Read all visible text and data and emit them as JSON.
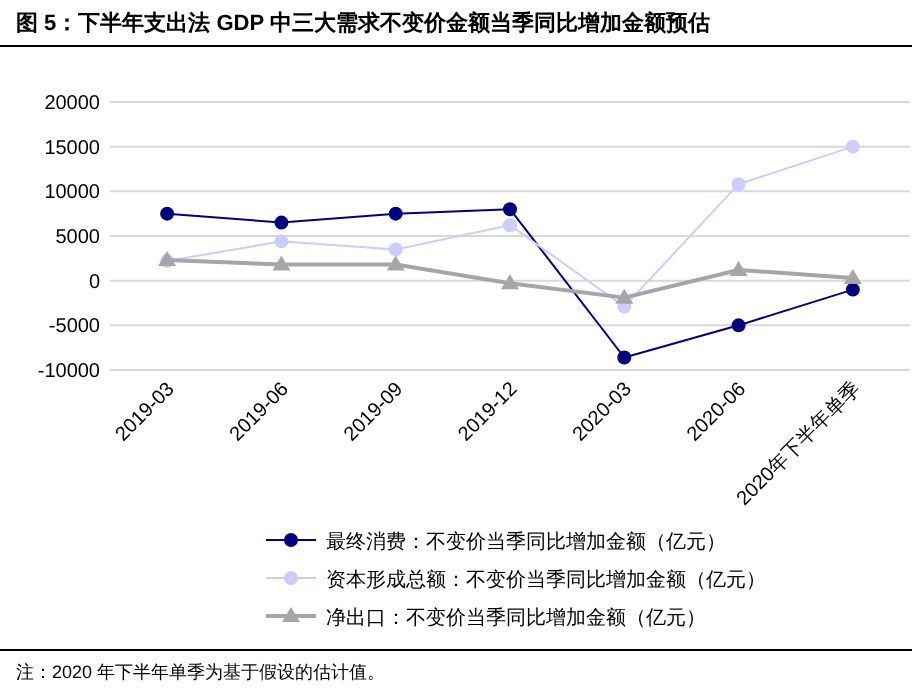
{
  "chart_data": {
    "type": "line",
    "title": "图 5：下半年支出法 GDP 中三大需求不变价金额当季同比增加金额预估",
    "categories": [
      "2019-03",
      "2019-06",
      "2019-09",
      "2019-12",
      "2020-03",
      "2020-06",
      "2020年下半年单季"
    ],
    "series": [
      {
        "name": "最终消费：不变价当季同比增加金额（亿元）",
        "color": "#000080",
        "marker": "circle",
        "values": [
          7500,
          6500,
          7500,
          8000,
          -8600,
          -5000,
          -1000
        ]
      },
      {
        "name": "资本形成总额：不变价当季同比增加金额（亿元）",
        "color": "#ccccff",
        "marker": "circle",
        "values": [
          2200,
          4400,
          3500,
          6200,
          -2900,
          10800,
          15000
        ]
      },
      {
        "name": "净出口：不变价当季同比增加金额（亿元）",
        "color": "#a6a6a6",
        "marker": "triangle",
        "values": [
          2300,
          1800,
          1800,
          -300,
          -1900,
          1200,
          300
        ]
      }
    ],
    "ylim": [
      -10000,
      20000
    ],
    "yticks": [
      -10000,
      -5000,
      0,
      5000,
      10000,
      15000,
      20000
    ],
    "grid": "y",
    "legend": "bottom",
    "annotations": [
      "注：2020 年下半年单季为基于假设的估计值。"
    ]
  }
}
